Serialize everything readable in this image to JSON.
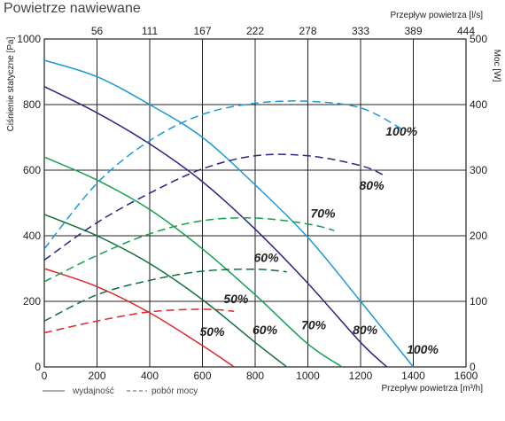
{
  "title": "Powietrze nawiewane",
  "chart_data": {
    "type": "line",
    "title": "Powietrze nawiewane",
    "x_bottom": {
      "label": "Przepływ powietrza [m³/h]",
      "ticks": [
        0,
        200,
        400,
        600,
        800,
        1000,
        1200,
        1400,
        1600
      ],
      "range": [
        0,
        1600
      ]
    },
    "x_top": {
      "label": "Przepływ powietrza [l/s]",
      "ticks": [
        "56",
        "111",
        "167",
        "222",
        "278",
        "333",
        "389",
        "444"
      ]
    },
    "y_left": {
      "label": "Ciśnienie statyczne [Pa]",
      "ticks": [
        0,
        200,
        400,
        600,
        800,
        1000
      ],
      "range": [
        0,
        1000
      ]
    },
    "y_right": {
      "label": "Moc [W]",
      "ticks": [
        0,
        100,
        200,
        300,
        400,
        500
      ],
      "range": [
        0,
        500
      ]
    },
    "grid": true,
    "legend": {
      "position": "bottom-left",
      "solid": "wydajność",
      "dashed": "pobór mocy"
    },
    "series": [
      {
        "name": "100%",
        "color": "#1a9ad6",
        "axis": "left",
        "style": "solid",
        "x": [
          0,
          200,
          400,
          600,
          800,
          1000,
          1200,
          1300,
          1400
        ],
        "y": [
          935,
          885,
          800,
          700,
          555,
          395,
          200,
          100,
          0
        ]
      },
      {
        "name": "80%",
        "color": "#2b2682",
        "axis": "left",
        "style": "solid",
        "x": [
          0,
          200,
          400,
          600,
          800,
          1000,
          1200,
          1300
        ],
        "y": [
          855,
          775,
          680,
          565,
          420,
          255,
          75,
          0
        ]
      },
      {
        "name": "70%",
        "color": "#16a04e",
        "axis": "left",
        "style": "solid",
        "x": [
          0,
          200,
          400,
          600,
          800,
          1000,
          1130
        ],
        "y": [
          640,
          570,
          480,
          360,
          220,
          70,
          0
        ]
      },
      {
        "name": "60%",
        "color": "#0f6e38",
        "axis": "left",
        "style": "solid",
        "x": [
          0,
          200,
          400,
          600,
          800,
          920
        ],
        "y": [
          465,
          400,
          315,
          205,
          75,
          0
        ]
      },
      {
        "name": "50%",
        "color": "#e2242b",
        "axis": "left",
        "style": "solid",
        "x": [
          0,
          200,
          400,
          600,
          720
        ],
        "y": [
          300,
          245,
          165,
          65,
          0
        ]
      },
      {
        "name": "100%",
        "color": "#1a9ad6",
        "axis": "right",
        "style": "dashed",
        "x": [
          0,
          200,
          400,
          600,
          800,
          1000,
          1200,
          1360
        ],
        "y": [
          180,
          280,
          345,
          385,
          402,
          405,
          395,
          362
        ]
      },
      {
        "name": "80%",
        "color": "#2b2682",
        "axis": "right",
        "style": "dashed",
        "x": [
          0,
          200,
          400,
          600,
          800,
          1000,
          1200,
          1290
        ],
        "y": [
          163,
          220,
          265,
          302,
          322,
          322,
          307,
          292
        ]
      },
      {
        "name": "70%",
        "color": "#16a04e",
        "axis": "right",
        "style": "dashed",
        "x": [
          0,
          200,
          400,
          600,
          800,
          1000,
          1100
        ],
        "y": [
          130,
          170,
          203,
          223,
          227,
          218,
          208
        ]
      },
      {
        "name": "60%",
        "color": "#0f6e38",
        "axis": "right",
        "style": "dashed",
        "x": [
          0,
          200,
          400,
          600,
          800,
          920
        ],
        "y": [
          70,
          110,
          132,
          146,
          149,
          145
        ]
      },
      {
        "name": "50%",
        "color": "#e2242b",
        "axis": "right",
        "style": "dashed",
        "x": [
          0,
          200,
          400,
          600,
          720
        ],
        "y": [
          52,
          70,
          84,
          88,
          85
        ]
      }
    ],
    "annotations": [
      {
        "text": "100%",
        "x": 1295,
        "y": 705
      },
      {
        "text": "80%",
        "x": 1195,
        "y": 540
      },
      {
        "text": "70%",
        "x": 1010,
        "y": 455
      },
      {
        "text": "60%",
        "x": 795,
        "y": 320
      },
      {
        "text": "50%",
        "x": 680,
        "y": 195
      },
      {
        "text": "50%",
        "x": 590,
        "y": 95
      },
      {
        "text": "60%",
        "x": 790,
        "y": 100
      },
      {
        "text": "70%",
        "x": 975,
        "y": 115
      },
      {
        "text": "80%",
        "x": 1170,
        "y": 100
      },
      {
        "text": "100%",
        "x": 1375,
        "y": 40
      }
    ]
  }
}
